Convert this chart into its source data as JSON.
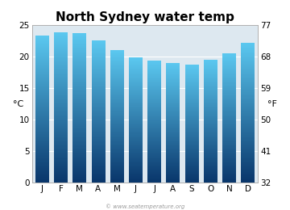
{
  "title": "North Sydney water temp",
  "months": [
    "J",
    "F",
    "M",
    "A",
    "M",
    "J",
    "J",
    "A",
    "S",
    "O",
    "N",
    "D"
  ],
  "values_c": [
    23.3,
    23.8,
    23.6,
    22.5,
    21.0,
    19.8,
    19.3,
    18.9,
    18.6,
    19.4,
    20.4,
    22.1
  ],
  "ylim_c": [
    0,
    25
  ],
  "yticks_c": [
    0,
    5,
    10,
    15,
    20,
    25
  ],
  "yticks_f": [
    32,
    41,
    50,
    59,
    68,
    77
  ],
  "ylabel_left": "°C",
  "ylabel_right": "°F",
  "bar_color_top": "#5bc8f0",
  "bar_color_bottom": "#09366b",
  "background_color": "#ffffff",
  "plot_bg_color": "#dde8f0",
  "watermark": "© www.seatemperature.org",
  "title_fontsize": 11,
  "axis_fontsize": 7.5,
  "label_fontsize": 8
}
